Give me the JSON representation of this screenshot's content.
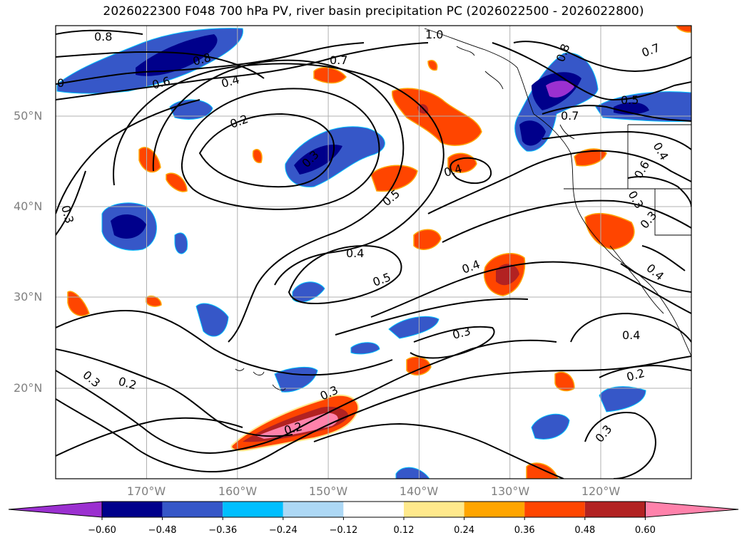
{
  "title": "2026022300 F048 700 hPa PV, river basin precipitation PC (2026022500 - 2026022800)",
  "lat_labels": [
    "50°N",
    "40°N",
    "30°N",
    "20°N"
  ],
  "lon_labels": [
    "170°W",
    "160°W",
    "150°W",
    "140°W",
    "130°W",
    "120°W"
  ],
  "colorbar": {
    "tick_labels": [
      "−0.60",
      "−0.48",
      "−0.36",
      "−0.24",
      "−0.12",
      "0.12",
      "0.24",
      "0.36",
      "0.48",
      "0.60"
    ],
    "colors": [
      "#9b30d0",
      "#00008b",
      "#3657c8",
      "#00bfff",
      "#add8f5",
      "#ffffff",
      "#ffe98c",
      "#ffa500",
      "#ff4500",
      "#b22222",
      "#ff82ab"
    ]
  },
  "contour_labels": [
    "0.8",
    "0.8",
    "0.6",
    "0.4",
    "0.2",
    "0.3",
    "0.7",
    "0.4",
    "0.5",
    "0.4",
    "0.5",
    "0.3",
    "0.4",
    "0.3",
    "0.2",
    "0.2",
    "0.3",
    "0.3",
    "0.4",
    "0.2",
    "0.3",
    "0.7",
    "0.8",
    "0.7",
    "0.5",
    "0.4",
    "0.6",
    "0.3",
    "0.3",
    "0.4",
    "1.0",
    "0"
  ]
}
